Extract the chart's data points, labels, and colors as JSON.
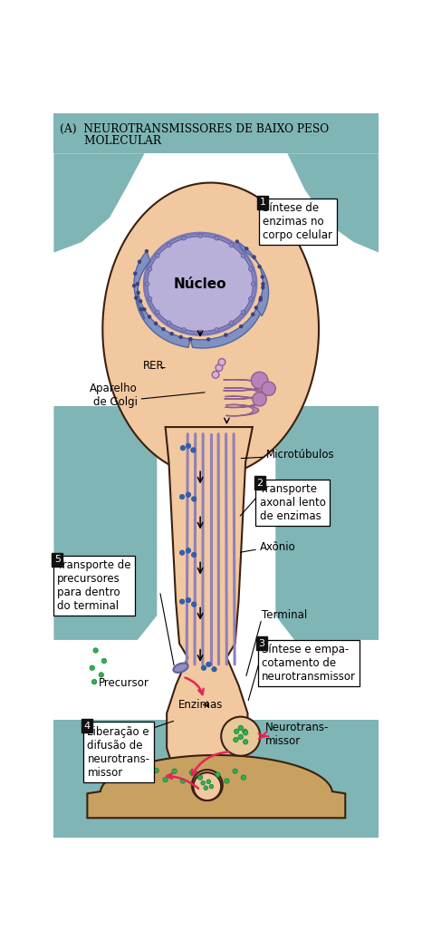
{
  "title_line1": "(A)  NEUROTRANSMISSORES DE BAIXO PESO",
  "title_line2": "       MOLECULAR",
  "bg_color": "#ffffff",
  "teal_bg": "#7fb5b5",
  "soma_fill": "#f2c8a0",
  "soma_outline": "#2a1a00",
  "nucleus_fill": "#b8b0d8",
  "nucleus_outline": "#7878b8",
  "rer_color": "#8090c0",
  "golgi_color": "#b882b8",
  "microtubule_color": "#9080b8",
  "dot_color": "#3060b0",
  "green_dot_color": "#30b050",
  "synapse_fill": "#c8a060",
  "pink_arrow": "#e02858",
  "label1": "Síntese de\nenzimas no\ncorpo celular",
  "label2": "Transporte\naxonal lento\nde enzimas",
  "label3": "Síntese e empa-\ncotamento de\nneurotransmissor",
  "label4": "Liberação e\ndifusão de\nneurotrans-\nmissor",
  "label5": "Transporte de\nprecursores\npara dentro\ndo terminal",
  "label_RER": "RER",
  "label_golgi": "Aparelho\nde Golgi",
  "label_microtubulos": "Microtúbulos",
  "label_axonio": "Axônio",
  "label_terminal": "Terminal",
  "label_precursor": "Precursor",
  "label_enzimas": "Enzimas",
  "label_nucleo": "Núcleo",
  "label_neurotransmissor": "Neurotrans-\nmissor"
}
